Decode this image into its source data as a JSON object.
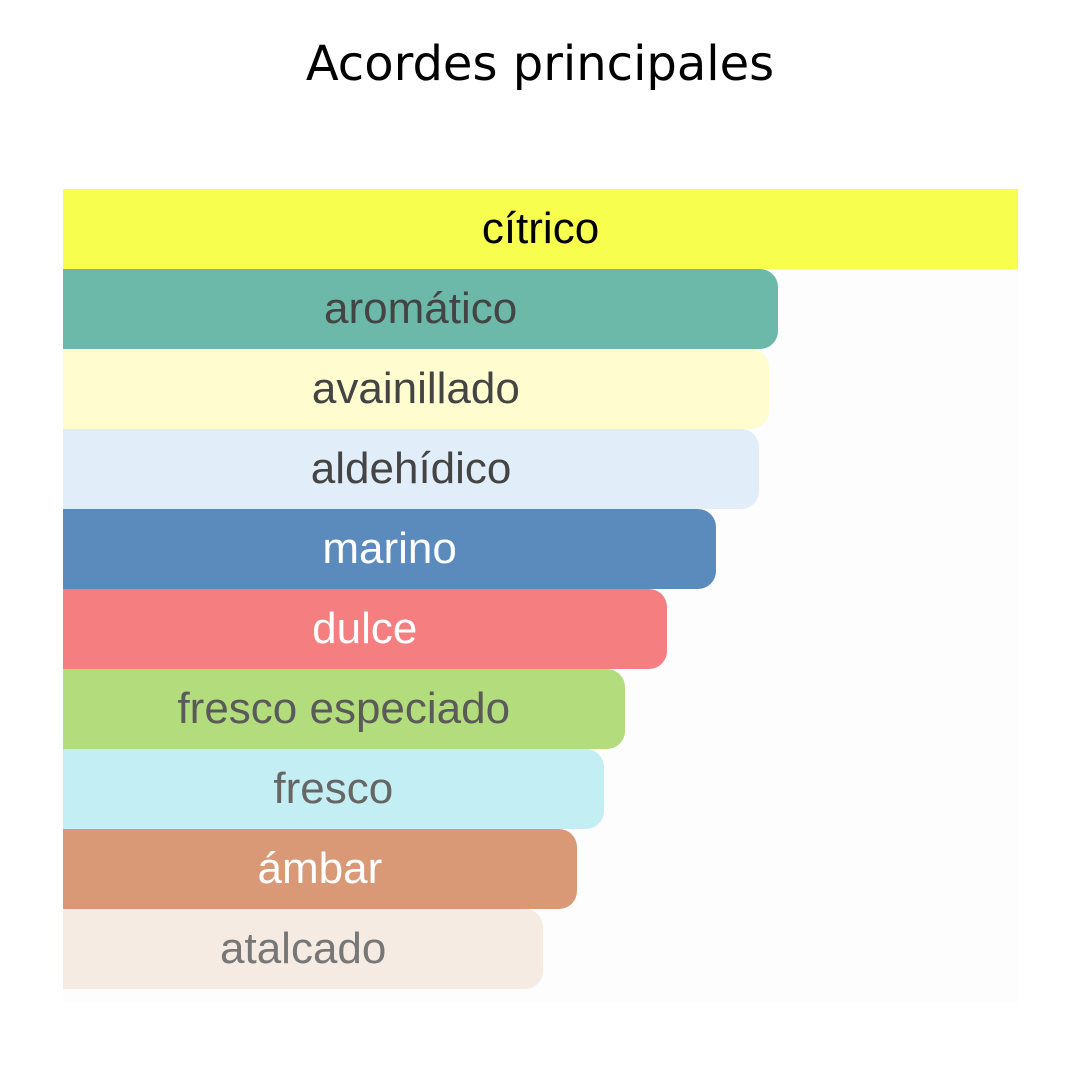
{
  "title": "Acordes principales",
  "chart_data": {
    "type": "bar",
    "orientation": "horizontal",
    "title": "Acordes principales",
    "unit": "relative strength (% of top accord)",
    "xlim": [
      0,
      100
    ],
    "grid": false,
    "categories": [
      "cítrico",
      "aromático",
      "avainillado",
      "aldehídico",
      "marino",
      "dulce",
      "fresco especiado",
      "fresco",
      "ámbar",
      "atalcado"
    ],
    "values": [
      100,
      74.9,
      73.9,
      72.9,
      68.4,
      63.2,
      58.8,
      56.6,
      53.8,
      50.3
    ],
    "colors": [
      "#f8fe4e",
      "#6cb9aa",
      "#fffdd0",
      "#e1edf8",
      "#5b8bbd",
      "#f47e80",
      "#b3dd7c",
      "#c3eef3",
      "#d99976",
      "#f5ebe2"
    ],
    "label_colors": [
      "#000000",
      "#444444",
      "#444444",
      "#444444",
      "#ffffff",
      "#ffffff",
      "#5a5a5a",
      "#666666",
      "#ffffff",
      "#777777"
    ]
  }
}
